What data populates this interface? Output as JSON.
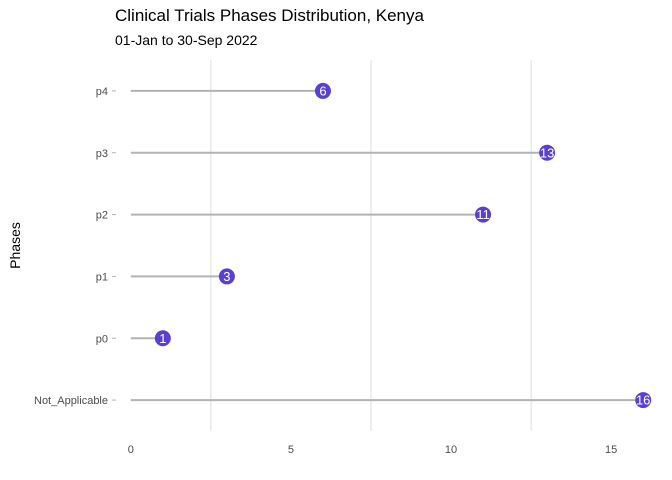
{
  "chart_data": {
    "type": "lollipop",
    "title": "Clinical Trials Phases Distribution, Kenya",
    "subtitle": "01-Jan to 30-Sep 2022",
    "xlabel": "",
    "ylabel": "Phases",
    "categories": [
      "p4",
      "p3",
      "p2",
      "p1",
      "p0",
      "Not_Applicable"
    ],
    "values": [
      6,
      13,
      11,
      3,
      1,
      16
    ],
    "xlim": [
      -0.4,
      16.4
    ],
    "x_ticks": [
      0,
      5,
      10,
      15
    ],
    "grid": "vertical",
    "colors": {
      "point": "#5b3fd1",
      "stem": "#b3b3b3",
      "grid": "#dedede",
      "point_label": "#ffffff"
    }
  }
}
